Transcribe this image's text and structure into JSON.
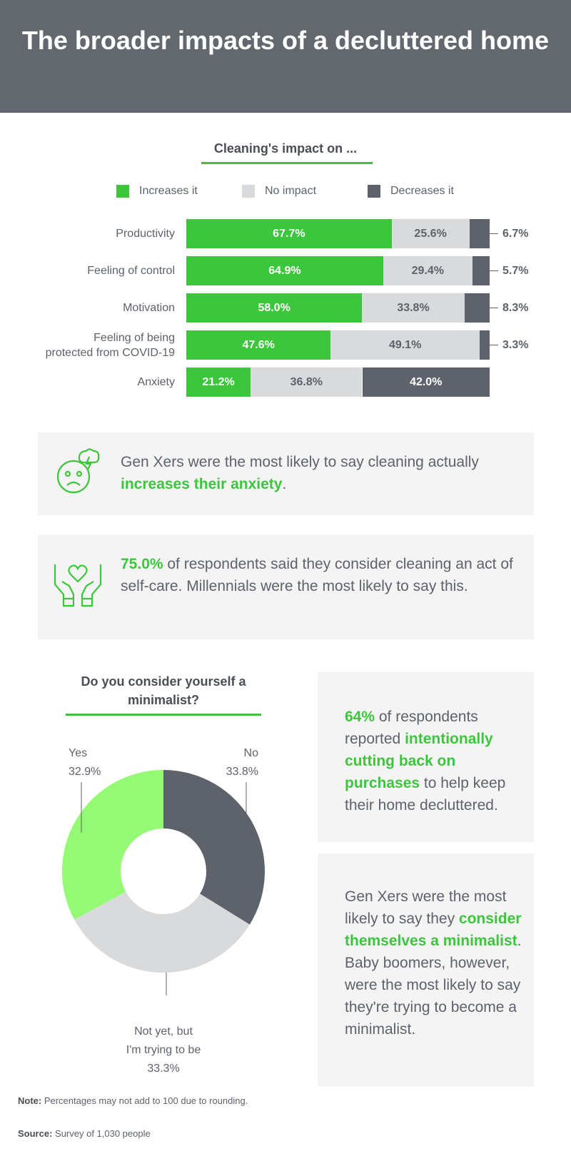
{
  "header": {
    "title": "The broader impacts of a decluttered home"
  },
  "colors": {
    "increase": "#3cc63c",
    "none": "#d9dadc",
    "decrease": "#5d626b",
    "yes": "#94fa73",
    "header": "#63676e",
    "box": "#f4f4f4"
  },
  "chart_data": [
    {
      "type": "bar",
      "stacked": true,
      "orientation": "horizontal",
      "title": "Cleaning's impact on ...",
      "legend": [
        "Increases it",
        "No impact",
        "Decreases it"
      ],
      "legend_position": "top",
      "categories": [
        "Productivity",
        "Feeling of control",
        "Motivation",
        "Feeling of being protected from COVID-19",
        "Anxiety"
      ],
      "category_lines": [
        [
          "Productivity"
        ],
        [
          "Feeling of control"
        ],
        [
          "Motivation"
        ],
        [
          "Feeling of being",
          "protected from COVID-19"
        ],
        [
          "Anxiety"
        ]
      ],
      "series": [
        {
          "name": "Increases it",
          "values": [
            67.7,
            64.9,
            58.0,
            47.6,
            21.2
          ],
          "labels": [
            "67.7%",
            "64.9%",
            "58.0%",
            "47.6%",
            "21.2%"
          ]
        },
        {
          "name": "No impact",
          "values": [
            25.6,
            29.4,
            33.8,
            49.1,
            36.8
          ],
          "labels": [
            "25.6%",
            "29.4%",
            "33.8%",
            "49.1%",
            "36.8%"
          ]
        },
        {
          "name": "Decreases it",
          "values": [
            6.7,
            5.7,
            8.3,
            3.3,
            42.0
          ],
          "labels": [
            "6.7%",
            "5.7%",
            "8.3%",
            "3.3%",
            "42.0%"
          ]
        }
      ]
    },
    {
      "type": "pie",
      "donut": true,
      "title": "Do you consider yourself a minimalist?",
      "slices": [
        {
          "label": "No",
          "value": 33.8,
          "pct": "33.8%"
        },
        {
          "label_lines": [
            "Not yet, but",
            "I'm trying to be"
          ],
          "label": "Not yet, but I'm trying to be",
          "value": 33.3,
          "pct": "33.3%"
        },
        {
          "label": "Yes",
          "value": 32.9,
          "pct": "32.9%"
        }
      ]
    }
  ],
  "callouts": [
    {
      "icon": "anxious-face-icon",
      "pre": "Gen Xers were the most likely to say cleaning actually ",
      "hl": "increases their anxiety",
      "post": "."
    },
    {
      "icon": "heart-hands-icon",
      "hl": "75.0%",
      "post": " of respondents said they consider cleaning an act of self-care. Millennials were the most likely to say this."
    },
    {
      "hl": "64%",
      "mid": " of respondents reported ",
      "hl2": "intentionally cutting back on purchases",
      "post": " to help keep their home decluttered."
    },
    {
      "pre": "Gen Xers were the most likely to say they ",
      "hl": "consider themselves a minimalist",
      "post": ". Baby boomers, however, were the most likely to say they're trying to become a minimalist."
    }
  ],
  "footer": {
    "note_label": "Note:",
    "note": " Percentages may not add to 100 due to rounding.",
    "source_label": "Source:",
    "source": " Survey of 1,030 people"
  }
}
